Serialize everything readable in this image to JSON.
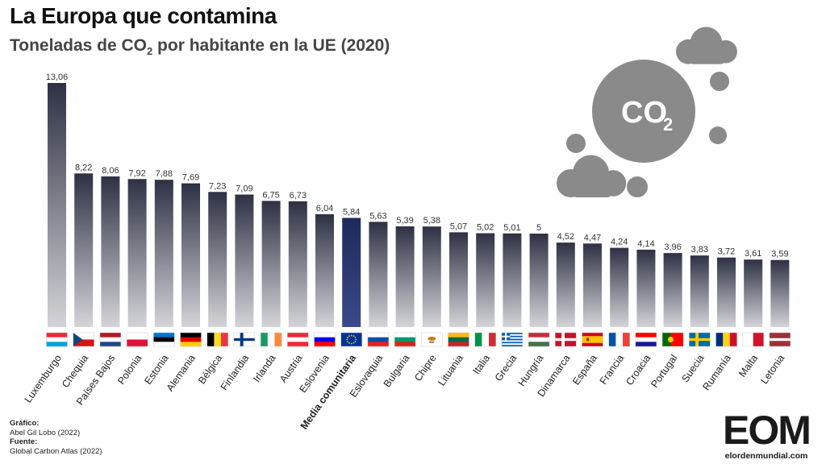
{
  "header": {
    "title": "La Europa que contamina",
    "subtitle_main": "Toneladas de CO",
    "subtitle_sub": "2",
    "subtitle_rest": " por habitante en la UE (2020)"
  },
  "credits": {
    "chart_head": "Gráfico:",
    "chart_author": "Abel Gil Lobo (2022)",
    "source_head": "Fuente:",
    "source": "Global Carbon Atlas (2022)"
  },
  "logo": {
    "letters": "EOM",
    "url": "elordenmundial.com"
  },
  "illustration": {
    "co2_text": "CO",
    "co2_sub": "2",
    "color": "#8a8a8a"
  },
  "colors": {
    "bar_dark": "#2e3144",
    "bar_light": "#d4d4d8",
    "highlight_top": "#1f2a5a",
    "highlight_bottom": "#3a4a8a"
  },
  "chart_data": {
    "type": "bar",
    "title": "La Europa que contamina",
    "subtitle": "Toneladas de CO₂ por habitante en la UE (2020)",
    "categories": [
      "Luxemburgo",
      "Chequia",
      "Países Bajos",
      "Polonia",
      "Estonia",
      "Alemania",
      "Bélgica",
      "Finlandia",
      "Irlanda",
      "Austria",
      "Eslovenia",
      "Media comunitaria",
      "Eslovaquia",
      "Bulgaria",
      "Chipre",
      "Lituania",
      "Italia",
      "Grecia",
      "Hungría",
      "Dinamarca",
      "España",
      "Francia",
      "Croacia",
      "Portugal",
      "Suecia",
      "Rumanía",
      "Malta",
      "Letonia"
    ],
    "values": [
      13.06,
      8.22,
      8.06,
      7.92,
      7.88,
      7.69,
      7.23,
      7.09,
      6.75,
      6.73,
      6.04,
      5.84,
      5.63,
      5.39,
      5.38,
      5.07,
      5.02,
      5.01,
      5,
      4.52,
      4.47,
      4.24,
      4.14,
      3.96,
      3.83,
      3.72,
      3.61,
      3.59
    ],
    "value_labels": [
      "13,06",
      "8,22",
      "8,06",
      "7,92",
      "7,88",
      "7,69",
      "7,23",
      "7,09",
      "6,75",
      "6,73",
      "6,04",
      "5,84",
      "5,63",
      "5,39",
      "5,38",
      "5,07",
      "5,02",
      "5,01",
      "5",
      "4,52",
      "4,47",
      "4,24",
      "4,14",
      "3,96",
      "3,83",
      "3,72",
      "3,61",
      "3,59"
    ],
    "highlight": "Media comunitaria",
    "ylim": [
      0,
      13.06
    ],
    "grid": false,
    "legend": "none"
  }
}
